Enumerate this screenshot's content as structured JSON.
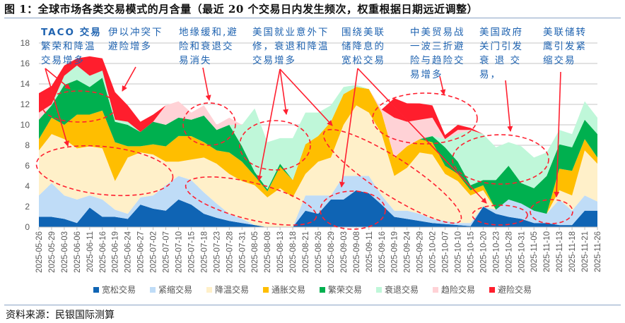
{
  "title": "图 1：全球市场各类交易模式的月含量（最近 20 个交易日内发生频次，权重根据日期远近调整）",
  "source": "资料来源：民银国际测算",
  "annotations": [
    {
      "lines": [
        "TACO 交易",
        "繁荣和降温",
        "交易增多"
      ]
    },
    {
      "lines": [
        "伊以冲突下",
        "避险增多"
      ]
    },
    {
      "lines": [
        "地缘缓和,避",
        "险和衰退交",
        "易消失"
      ]
    },
    {
      "lines": [
        "美国就业意外下",
        "修，衰退和降温",
        "交易增多"
      ]
    },
    {
      "lines": [
        "围绕美联",
        "储降息的",
        "宽松交易"
      ]
    },
    {
      "lines": [
        "中美贸易战",
        "一波三折避",
        "险与趋险交",
        "易增多"
      ]
    },
    {
      "lines": [
        "美国政府",
        "关门引发",
        "衰 退 交",
        "易，"
      ]
    },
    {
      "lines": [
        "美联储转",
        "鹰引发紧",
        "缩交易"
      ]
    }
  ],
  "chart_data": {
    "type": "area",
    "stacked": true,
    "title": "",
    "xlabel": "",
    "ylabel": "",
    "ylim": [
      0,
      18
    ],
    "yticks": [
      0,
      2,
      4,
      6,
      8,
      10,
      12,
      14,
      16,
      18
    ],
    "grid": true,
    "legend_position": "bottom",
    "x": [
      "2025-05-26",
      "2025-05-29",
      "2025-06-03",
      "2025-06-06",
      "2025-06-11",
      "2025-06-16",
      "2025-06-19",
      "2025-06-24",
      "2025-06-27",
      "2025-07-02",
      "2025-07-07",
      "2025-07-10",
      "2025-07-15",
      "2025-07-18",
      "2025-07-23",
      "2025-07-28",
      "2025-07-31",
      "2025-08-05",
      "2025-08-08",
      "2025-08-13",
      "2025-08-18",
      "2025-08-21",
      "2025-08-26",
      "2025-08-29",
      "2025-09-03",
      "2025-09-08",
      "2025-09-11",
      "2025-09-16",
      "2025-09-19",
      "2025-09-24",
      "2025-09-29",
      "2025-10-02",
      "2025-10-07",
      "2025-10-10",
      "2025-10-15",
      "2025-10-20",
      "2025-10-23",
      "2025-10-28",
      "2025-10-31",
      "2025-11-05",
      "2025-11-10",
      "2025-11-13",
      "2025-11-18",
      "2025-11-21",
      "2025-11-26"
    ],
    "series": [
      {
        "name": "宽松交易",
        "color": "#0f64b4",
        "values": [
          1.0,
          1.0,
          0.8,
          0.4,
          1.9,
          1.0,
          1.0,
          0.8,
          2.2,
          1.8,
          1.6,
          2.7,
          2.2,
          1.3,
          0.9,
          0.6,
          0.4,
          0.2,
          0,
          0,
          0,
          1.6,
          1.3,
          2.7,
          2.7,
          3.6,
          3.3,
          2.2,
          1.0,
          0.8,
          0.6,
          0.4,
          0.3,
          0.2,
          0.1,
          2.0,
          1.3,
          1.0,
          0.8,
          0.4,
          0.4,
          0.2,
          0.2,
          1.6,
          1.6
        ]
      },
      {
        "name": "紧缩交易",
        "color": "#bfdcf7",
        "values": [
          2.1,
          3.3,
          2.3,
          2.3,
          1.2,
          1.7,
          0.7,
          0.5,
          0.7,
          1.3,
          2.5,
          2.3,
          2.4,
          2.1,
          1.4,
          0.7,
          0.4,
          0,
          0,
          0,
          0,
          1.5,
          1.8,
          0.4,
          2.3,
          1.4,
          1.7,
          0.9,
          0.6,
          0.8,
          0.7,
          0.4,
          0.3,
          0.2,
          0.3,
          0,
          0.4,
          1.7,
          1.5,
          1.2,
          0.9,
          2.5,
          1.4,
          1.5,
          0.9
        ]
      },
      {
        "name": "降温交易",
        "color": "#fff0c9",
        "values": [
          4.4,
          4.8,
          5.5,
          5.0,
          4.8,
          5.0,
          2.8,
          5.5,
          4.4,
          4.0,
          2.3,
          1.4,
          2.0,
          3.4,
          3.9,
          3.9,
          3.7,
          3.9,
          2.9,
          3.8,
          2.9,
          2.1,
          3.3,
          3.7,
          5.0,
          6.9,
          6.2,
          6.0,
          3.4,
          4.2,
          6.0,
          6.3,
          4.6,
          4.1,
          2.7,
          1.6,
          0,
          0,
          0,
          0,
          0,
          0.9,
          1.5,
          4.4,
          3.7
        ]
      },
      {
        "name": "通胀交易",
        "color": "#ffbe00",
        "values": [
          1.1,
          1.6,
          1.4,
          3.3,
          3.1,
          3.7,
          3.8,
          1.1,
          0.6,
          1.0,
          1.5,
          2.5,
          2.3,
          1.5,
          1.3,
          2.1,
          1.9,
          0.9,
          0.6,
          2.1,
          1.7,
          2.9,
          2.5,
          3.5,
          3.0,
          1.8,
          2.3,
          2.1,
          1.8,
          2.1,
          1.3,
          1.2,
          0.8,
          0.7,
          0.5,
          0.5,
          0,
          0,
          0,
          0,
          0,
          2.1,
          2.4,
          1.1,
          0.6
        ]
      },
      {
        "name": "繁荣交易",
        "color": "#00b04f",
        "values": [
          1.9,
          1.2,
          3.9,
          3.4,
          2.7,
          3.2,
          2.0,
          2.1,
          1.4,
          2.2,
          2.1,
          1.8,
          1.6,
          2.6,
          2.0,
          2.7,
          1.5,
          0.4,
          0.2,
          0.3,
          0,
          0,
          0,
          0,
          0,
          0,
          0,
          0,
          0,
          0,
          0,
          0.6,
          1.8,
          1.2,
          0.5,
          0.5,
          2.9,
          3.3,
          2.0,
          2.2,
          3.7,
          2.4,
          2.3,
          1.9,
          2.3
        ]
      },
      {
        "name": "衰退交易",
        "color": "#bff7d9",
        "values": [
          0,
          0.1,
          0.9,
          1.4,
          1.1,
          0.7,
          0.2,
          0.3,
          0,
          0,
          0,
          0,
          0,
          0,
          0,
          0,
          2.1,
          6.2,
          4.6,
          2.5,
          4.1,
          3.1,
          2.3,
          1.6,
          0.7,
          0.2,
          0,
          0,
          0,
          0,
          0,
          0,
          0.8,
          2.7,
          5.4,
          4.5,
          3.2,
          2.3,
          3.6,
          3.0,
          2.3,
          1.4,
          1.3,
          1.8,
          1.6
        ]
      },
      {
        "name": "趋险交易",
        "color": "#ffd2d6",
        "values": [
          0.7,
          0,
          0,
          0,
          0,
          0,
          0,
          0,
          0,
          0,
          1.9,
          1.6,
          0.7,
          1.0,
          0.5,
          0.7,
          0,
          0,
          0,
          0,
          0,
          0,
          0,
          0,
          0,
          0,
          0,
          0.3,
          3.9,
          2.4,
          1.9,
          1.8,
          0,
          0.4,
          0,
          0,
          0,
          0,
          0,
          0,
          0,
          0,
          0,
          0,
          0
        ]
      },
      {
        "name": "避险交易",
        "color": "#ff1e2d",
        "values": [
          1.9,
          1.8,
          1.0,
          0.7,
          1.9,
          1.2,
          2.7,
          1.6,
          1.0,
          0.7,
          0,
          0,
          0,
          0,
          0,
          0,
          0,
          0,
          0,
          0,
          0,
          0,
          0,
          0,
          0,
          0,
          0,
          0,
          1.9,
          1.8,
          1.6,
          1.2,
          0.4,
          0.5,
          0.2,
          0,
          0,
          0,
          0,
          0,
          0,
          0,
          0,
          0,
          0
        ]
      }
    ]
  }
}
